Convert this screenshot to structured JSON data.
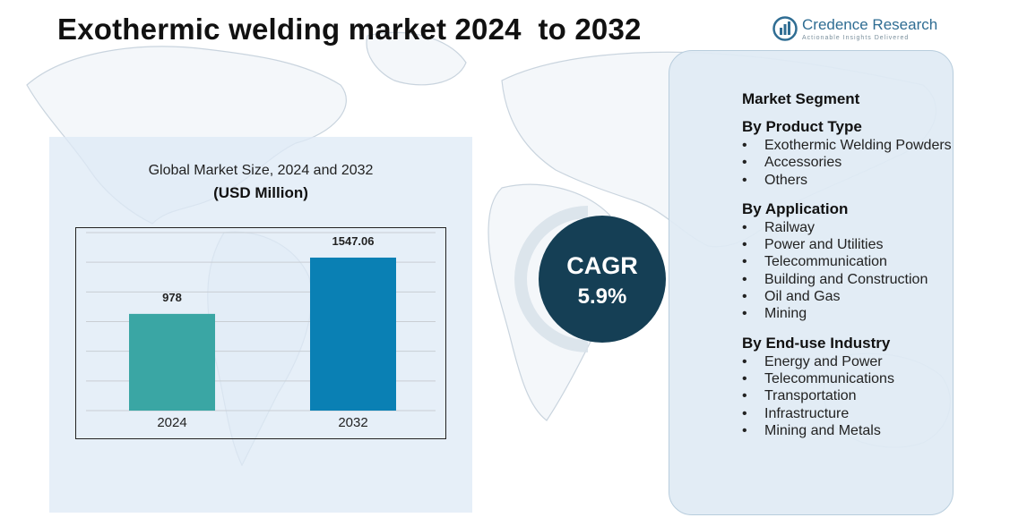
{
  "header": {
    "title": "Exothermic welding market 2024  to 2032",
    "brand_name": "Credence Research",
    "brand_tagline": "Actionable Insights Delivered"
  },
  "colors": {
    "bar_2024": "#3aa6a4",
    "bar_2032": "#0a80b4",
    "cagr_circle": "#153f55",
    "panel_bg": "#dde9f5",
    "brand": "#2f6d93"
  },
  "chart_data": {
    "type": "bar",
    "title": "Global Market Size, 2024 and 2032",
    "unit": "(USD Million)",
    "categories": [
      "2024",
      "2032"
    ],
    "values": [
      978,
      1547.06
    ],
    "value_labels": [
      "978",
      "1547.06"
    ],
    "ylim": [
      0,
      1800
    ],
    "grid": true,
    "xlabel": "",
    "ylabel": ""
  },
  "cagr": {
    "label": "CAGR",
    "value": "5.9%"
  },
  "segments": {
    "heading": "Market Segment",
    "groups": [
      {
        "title": "By Product Type",
        "items": [
          "Exothermic Welding Powders",
          "Accessories",
          "Others"
        ]
      },
      {
        "title": "By Application",
        "items": [
          "Railway",
          "Power and Utilities",
          "Telecommunication",
          "Building and Construction",
          "Oil and Gas",
          "Mining"
        ]
      },
      {
        "title": "By End-use Industry",
        "items": [
          "Energy and Power",
          "Telecommunications",
          "Transportation",
          "Infrastructure",
          "Mining and Metals"
        ]
      }
    ]
  }
}
